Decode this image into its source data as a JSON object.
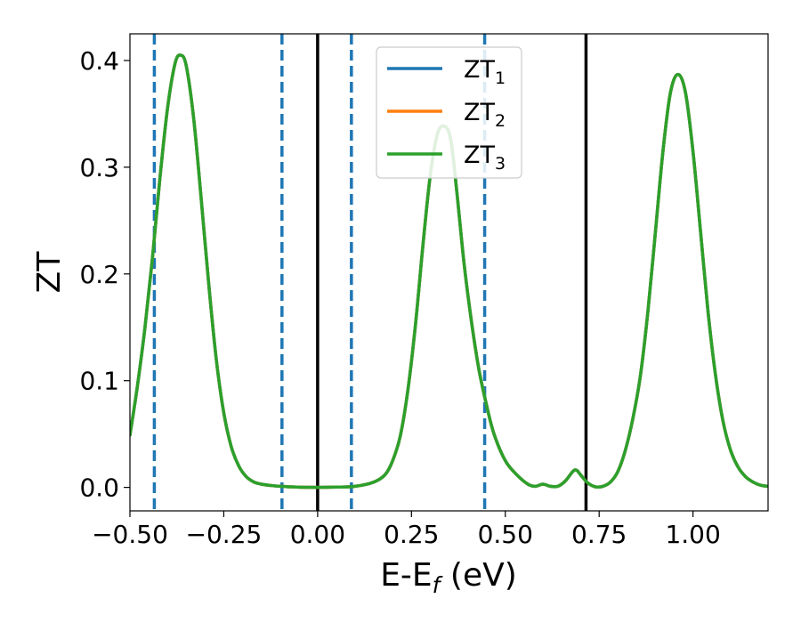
{
  "chart_data": {
    "type": "line",
    "xlabel_main": "E-E",
    "xlabel_sub": "f",
    "xlabel_unit": " (eV)",
    "ylabel": "ZT",
    "xlim": [
      -0.5,
      1.2
    ],
    "ylim": [
      -0.022,
      0.425
    ],
    "xticks": [
      -0.5,
      -0.25,
      0.0,
      0.25,
      0.5,
      0.75,
      1.0
    ],
    "xtick_labels": [
      "−0.50",
      "−0.25",
      "0.00",
      "0.25",
      "0.50",
      "0.75",
      "1.00"
    ],
    "yticks": [
      0.0,
      0.1,
      0.2,
      0.3,
      0.4
    ],
    "ytick_labels": [
      "0.0",
      "0.1",
      "0.2",
      "0.3",
      "0.4"
    ],
    "grid": false,
    "legend_position": "top-center",
    "colors": {
      "zt1": "#1f77b4",
      "zt2": "#ff7f0e",
      "zt3": "#2ca02c",
      "solid_vline": "#000000",
      "dashed_vline": "#1f77b4"
    },
    "series": [
      {
        "name": "ZT",
        "subscript": "1",
        "color": "#1f77b4"
      },
      {
        "name": "ZT",
        "subscript": "2",
        "color": "#ff7f0e"
      },
      {
        "name": "ZT",
        "subscript": "3",
        "color": "#2ca02c"
      }
    ],
    "x": [
      -0.5,
      -0.48,
      -0.46,
      -0.44,
      -0.42,
      -0.4,
      -0.38,
      -0.365,
      -0.35,
      -0.33,
      -0.31,
      -0.29,
      -0.27,
      -0.25,
      -0.23,
      -0.21,
      -0.19,
      -0.17,
      -0.15,
      -0.13,
      -0.1,
      -0.05,
      0.0,
      0.05,
      0.1,
      0.15,
      0.18,
      0.2,
      0.22,
      0.24,
      0.26,
      0.28,
      0.3,
      0.32,
      0.34,
      0.355,
      0.37,
      0.39,
      0.41,
      0.43,
      0.45,
      0.47,
      0.5,
      0.53,
      0.56,
      0.58,
      0.6,
      0.62,
      0.64,
      0.66,
      0.68,
      0.69,
      0.7,
      0.72,
      0.74,
      0.76,
      0.78,
      0.8,
      0.82,
      0.84,
      0.86,
      0.88,
      0.9,
      0.92,
      0.94,
      0.96,
      0.98,
      1.0,
      1.02,
      1.04,
      1.06,
      1.08,
      1.1,
      1.12,
      1.14,
      1.16,
      1.18,
      1.2
    ],
    "y": [
      0.049,
      0.095,
      0.15,
      0.215,
      0.29,
      0.355,
      0.397,
      0.405,
      0.395,
      0.345,
      0.27,
      0.19,
      0.12,
      0.07,
      0.038,
      0.02,
      0.01,
      0.005,
      0.003,
      0.002,
      0.001,
      0.0002,
      0.0,
      0.0003,
      0.001,
      0.005,
      0.012,
      0.025,
      0.048,
      0.09,
      0.15,
      0.225,
      0.292,
      0.332,
      0.338,
      0.325,
      0.28,
      0.21,
      0.155,
      0.11,
      0.077,
      0.05,
      0.025,
      0.012,
      0.003,
      0.001,
      0.003,
      0.001,
      0.001,
      0.006,
      0.015,
      0.016,
      0.012,
      0.004,
      0.0005,
      0.001,
      0.005,
      0.015,
      0.035,
      0.065,
      0.105,
      0.165,
      0.24,
      0.315,
      0.37,
      0.387,
      0.37,
      0.315,
      0.24,
      0.165,
      0.105,
      0.062,
      0.035,
      0.019,
      0.01,
      0.005,
      0.002,
      0.001
    ],
    "vlines_solid": [
      0.0,
      0.715
    ],
    "vlines_dashed": [
      -0.435,
      -0.095,
      0.09,
      0.445
    ]
  }
}
